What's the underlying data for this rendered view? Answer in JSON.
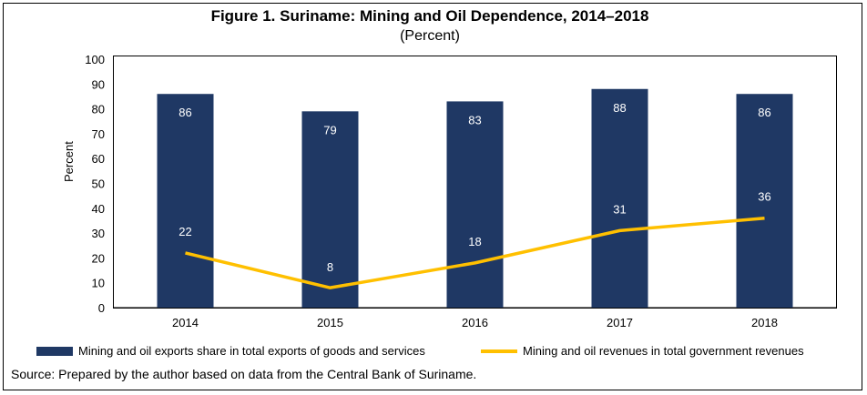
{
  "chart_data": {
    "type": "bar",
    "title": "Figure 1. Suriname: Mining and Oil Dependence, 2014–2018",
    "subtitle": "(Percent)",
    "categories": [
      "2014",
      "2015",
      "2016",
      "2017",
      "2018"
    ],
    "series": [
      {
        "name": "Mining and oil exports share in total exports of goods and services",
        "type": "bar",
        "values": [
          86,
          79,
          83,
          88,
          86
        ],
        "color": "#1f3864"
      },
      {
        "name": "Mining and oil revenues in total government revenues",
        "type": "line",
        "values": [
          22,
          8,
          18,
          31,
          36
        ],
        "color": "#ffc000"
      }
    ],
    "ylabel": "Percent",
    "xlabel": "",
    "ylim": [
      0,
      100
    ],
    "yticks": [
      0,
      10,
      20,
      30,
      40,
      50,
      60,
      70,
      80,
      90,
      100
    ],
    "grid": false,
    "legend": "bottom",
    "source": "Source: Prepared by the author based on data from the Central Bank of Suriname."
  }
}
